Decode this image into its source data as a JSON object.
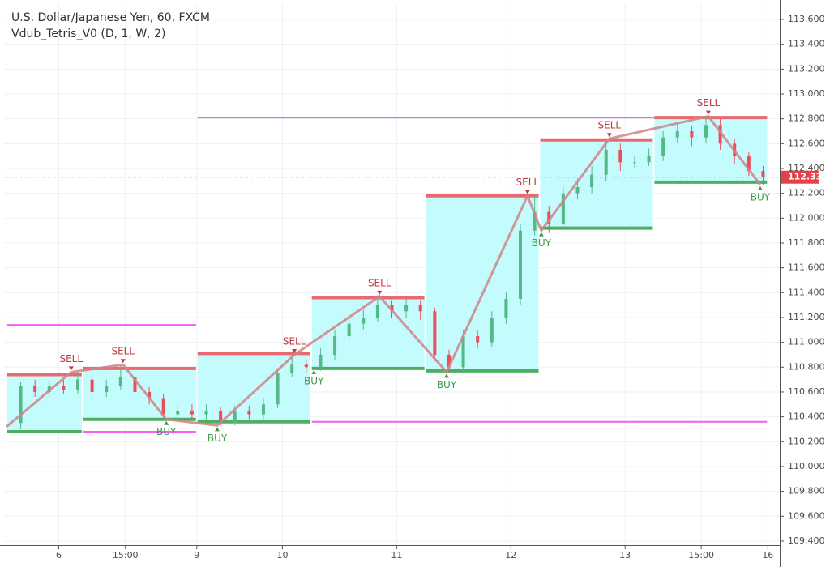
{
  "chart_data": {
    "type": "candlestick",
    "title": "U.S. Dollar/Japanese Yen, 60, FXCM",
    "subtitle": "Vdub_Tetris_V0 (D, 1, W, 2)",
    "xlim": [
      -0.5,
      162.5
    ],
    "ylim": [
      109.367,
      113.724
    ],
    "xticks": [
      {
        "value": 11,
        "label": "6"
      },
      {
        "value": 25,
        "label": "15:00"
      },
      {
        "value": 40,
        "label": "9"
      },
      {
        "value": 58,
        "label": "10"
      },
      {
        "value": 82,
        "label": "11"
      },
      {
        "value": 106,
        "label": "12"
      },
      {
        "value": 130,
        "label": "13"
      },
      {
        "value": 146,
        "label": "15:00"
      },
      {
        "value": 160,
        "label": "16"
      }
    ],
    "yticks": [
      {
        "value": 109.4,
        "label": "109.400"
      },
      {
        "value": 109.6,
        "label": "109.600"
      },
      {
        "value": 109.8,
        "label": "109.800"
      },
      {
        "value": 110.0,
        "label": "110.000"
      },
      {
        "value": 110.2,
        "label": "110.200"
      },
      {
        "value": 110.4,
        "label": "110.400"
      },
      {
        "value": 110.6,
        "label": "110.600"
      },
      {
        "value": 110.8,
        "label": "110.800"
      },
      {
        "value": 111.0,
        "label": "111.000"
      },
      {
        "value": 111.2,
        "label": "111.200"
      },
      {
        "value": 111.4,
        "label": "111.400"
      },
      {
        "value": 111.6,
        "label": "111.600"
      },
      {
        "value": 111.8,
        "label": "111.800"
      },
      {
        "value": 112.0,
        "label": "112.000"
      },
      {
        "value": 112.2,
        "label": "112.200"
      },
      {
        "value": 112.4,
        "label": "112.400"
      },
      {
        "value": 112.6,
        "label": "112.600"
      },
      {
        "value": 112.8,
        "label": "112.800"
      },
      {
        "value": 113.0,
        "label": "113.000"
      },
      {
        "value": 113.2,
        "label": "113.200"
      },
      {
        "value": 113.4,
        "label": "113.400"
      },
      {
        "value": 113.6,
        "label": "113.600"
      }
    ],
    "grid": true,
    "up_color": "#53b987",
    "down_color": "#eb4d5c",
    "candles": {
      "x": [
        3,
        6,
        9,
        12,
        15,
        18,
        21,
        24,
        27,
        30,
        33,
        36,
        39,
        42,
        45,
        48,
        51,
        54,
        57,
        60,
        63,
        66,
        69,
        72,
        75,
        78,
        81,
        84,
        87,
        90,
        93,
        96,
        99,
        102,
        105,
        108,
        111,
        114,
        117,
        120,
        123,
        126,
        129,
        132,
        135,
        138,
        141,
        144,
        147,
        150,
        153,
        156,
        159
      ],
      "open": [
        110.35,
        110.65,
        110.6,
        110.65,
        110.62,
        110.7,
        110.6,
        110.65,
        110.72,
        110.6,
        110.55,
        110.42,
        110.45,
        110.42,
        110.45,
        110.35,
        110.45,
        110.42,
        110.5,
        110.75,
        110.82,
        110.8,
        110.9,
        111.05,
        111.15,
        111.2,
        111.3,
        111.25,
        111.3,
        111.25,
        110.9,
        110.8,
        111.05,
        111.0,
        111.2,
        111.35,
        111.9,
        112.05,
        111.95,
        112.2,
        112.25,
        112.35,
        112.55,
        112.45,
        112.45,
        112.5,
        112.65,
        112.7,
        112.65,
        112.75,
        112.6,
        112.5,
        112.38
      ],
      "high": [
        110.68,
        110.7,
        110.69,
        110.7,
        110.76,
        110.74,
        110.7,
        110.82,
        110.75,
        110.64,
        110.58,
        110.49,
        110.5,
        110.5,
        110.48,
        110.49,
        110.49,
        110.55,
        110.79,
        110.9,
        110.86,
        110.95,
        111.1,
        111.2,
        111.26,
        111.38,
        111.34,
        111.35,
        111.34,
        111.28,
        110.94,
        111.1,
        111.1,
        111.25,
        111.4,
        111.95,
        112.18,
        112.1,
        112.25,
        112.32,
        112.42,
        112.63,
        112.6,
        112.5,
        112.56,
        112.7,
        112.76,
        112.74,
        112.82,
        112.8,
        112.64,
        112.53,
        112.42
      ],
      "low": [
        110.3,
        110.56,
        110.56,
        110.58,
        110.58,
        110.56,
        110.56,
        110.62,
        110.56,
        110.5,
        110.37,
        110.38,
        110.38,
        110.38,
        110.33,
        110.33,
        110.38,
        110.38,
        110.47,
        110.72,
        110.76,
        110.77,
        110.86,
        111.02,
        111.1,
        111.16,
        111.2,
        111.2,
        111.18,
        110.85,
        110.76,
        110.77,
        110.95,
        110.96,
        111.15,
        111.3,
        111.86,
        111.88,
        111.92,
        112.15,
        112.2,
        112.3,
        112.38,
        112.4,
        112.42,
        112.46,
        112.6,
        112.58,
        112.6,
        112.55,
        112.44,
        112.34,
        112.27
      ],
      "close": [
        110.65,
        110.6,
        110.65,
        110.62,
        110.7,
        110.6,
        110.65,
        110.72,
        110.6,
        110.55,
        110.42,
        110.45,
        110.42,
        110.45,
        110.35,
        110.45,
        110.42,
        110.5,
        110.75,
        110.82,
        110.8,
        110.9,
        111.05,
        111.15,
        111.2,
        111.3,
        111.25,
        111.3,
        111.25,
        110.9,
        110.8,
        111.05,
        111.0,
        111.2,
        111.35,
        111.9,
        112.05,
        111.95,
        112.2,
        112.25,
        112.35,
        112.55,
        112.45,
        112.45,
        112.5,
        112.65,
        112.7,
        112.65,
        112.75,
        112.6,
        112.5,
        112.38,
        112.33
      ]
    },
    "boxes": {
      "fill": "#c4fbfd",
      "top_color": "#e8696f",
      "bottom_color": "#4caf62",
      "x0": [
        0,
        16,
        40,
        64,
        88,
        112,
        136
      ],
      "x1": [
        16,
        40,
        64,
        88,
        112,
        136,
        160
      ],
      "top": [
        110.74,
        110.79,
        110.91,
        111.36,
        112.18,
        112.63,
        112.81
      ],
      "bottom": [
        110.28,
        110.38,
        110.36,
        110.79,
        110.77,
        111.92,
        112.29
      ]
    },
    "levels": {
      "color": "#f75cf7",
      "x0": [
        0,
        16,
        40,
        64
      ],
      "x1": [
        40,
        40,
        160,
        160
      ],
      "value": [
        111.14,
        110.28,
        112.81,
        110.36
      ]
    },
    "zigzag": {
      "color": "#d08489",
      "x": [
        0,
        13.6,
        24.5,
        33.6,
        44.3,
        60.5,
        78.4,
        92.5,
        109.5,
        112.4,
        126.7,
        147.5,
        158.4
      ],
      "y": [
        110.32,
        110.76,
        110.82,
        110.38,
        110.33,
        110.9,
        111.37,
        110.76,
        112.18,
        111.9,
        112.64,
        112.82,
        112.27
      ]
    },
    "signals": [
      {
        "label": "SELL",
        "x": 13.6,
        "price": 110.76
      },
      {
        "label": "SELL",
        "x": 24.5,
        "price": 110.82
      },
      {
        "label": "BUY",
        "x": 33.6,
        "price": 110.38
      },
      {
        "label": "BUY",
        "x": 44.3,
        "price": 110.33
      },
      {
        "label": "SELL",
        "x": 60.5,
        "price": 110.9
      },
      {
        "label": "BUY",
        "x": 64.6,
        "price": 110.79
      },
      {
        "label": "SELL",
        "x": 78.4,
        "price": 111.37
      },
      {
        "label": "BUY",
        "x": 92.5,
        "price": 110.76
      },
      {
        "label": "SELL",
        "x": 109.5,
        "price": 112.18
      },
      {
        "label": "BUY",
        "x": 112.4,
        "price": 111.9
      },
      {
        "label": "SELL",
        "x": 126.7,
        "price": 112.64
      },
      {
        "label": "SELL",
        "x": 147.5,
        "price": 112.82
      },
      {
        "label": "BUY",
        "x": 158.4,
        "price": 112.27
      }
    ],
    "last_price": {
      "value": 112.33,
      "label": "112.330"
    }
  }
}
